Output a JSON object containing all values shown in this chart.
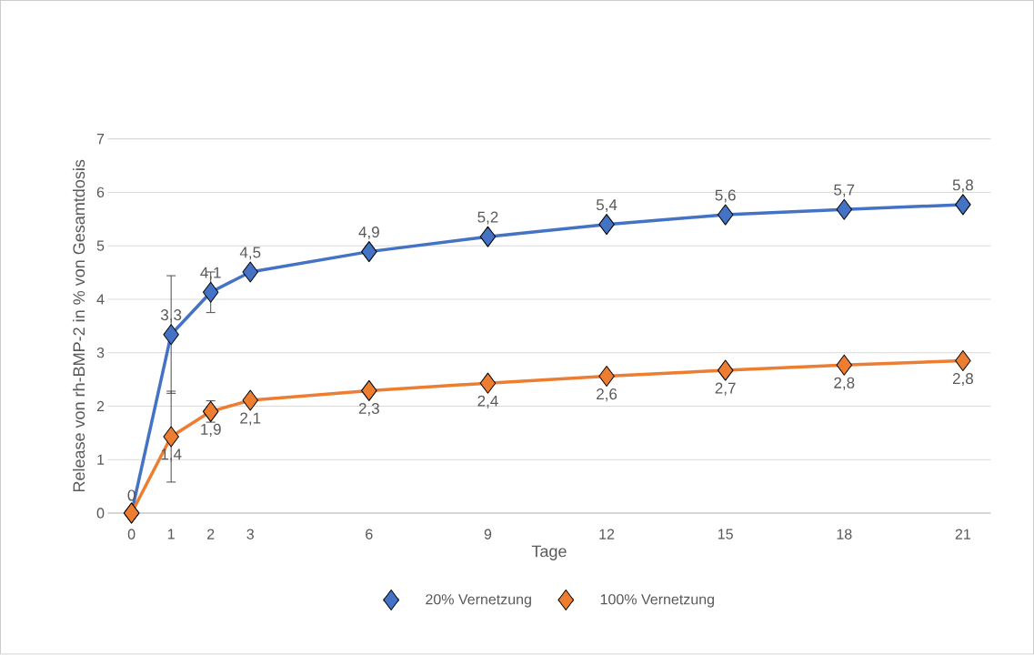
{
  "chart_data": {
    "type": "line",
    "xlabel": "Tage",
    "ylabel": "Release von rh-BMP-2 in % von Gesamtdosis",
    "x": [
      0,
      1,
      2,
      3,
      6,
      9,
      12,
      15,
      18,
      21
    ],
    "xlim": [
      -0.6,
      21.7
    ],
    "xticks": [
      0,
      1,
      2,
      3,
      6,
      9,
      12,
      15,
      18,
      21
    ],
    "ylim": [
      0,
      7
    ],
    "yticks": [
      0,
      1,
      2,
      3,
      4,
      5,
      6,
      7
    ],
    "grid": "y",
    "legend": "bottom",
    "marker": "diamond",
    "line_style": "solid",
    "series": [
      {
        "name": "20% Vernetzung",
        "color": "#4472c4",
        "values": [
          0,
          3.34,
          4.13,
          4.51,
          4.89,
          5.17,
          5.4,
          5.58,
          5.68,
          5.77
        ],
        "errors": [
          null,
          1.1,
          0.38,
          null,
          null,
          null,
          null,
          null,
          null,
          null
        ],
        "value_labels": [
          "0",
          "3,3",
          "4,1",
          "4,5",
          "4,9",
          "5,2",
          "5,4",
          "5,6",
          "5,7",
          "5,8"
        ]
      },
      {
        "name": "100% Vernetzung",
        "color": "#ed7d31",
        "values": [
          0,
          1.43,
          1.9,
          2.11,
          2.29,
          2.43,
          2.56,
          2.67,
          2.77,
          2.85
        ],
        "errors": [
          null,
          0.85,
          0.2,
          null,
          null,
          null,
          null,
          null,
          null,
          null
        ],
        "value_labels": [
          null,
          "1,4",
          "1,9",
          "2,1",
          "2,3",
          "2,4",
          "2,6",
          "2,7",
          "2,8",
          "2,8"
        ]
      }
    ]
  }
}
